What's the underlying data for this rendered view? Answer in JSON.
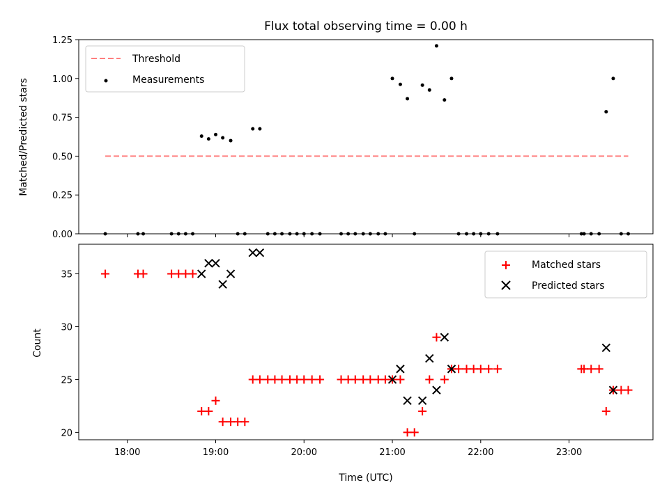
{
  "chart_data": [
    {
      "type": "scatter",
      "title": "Flux total observing time = 0.00 h",
      "xlabel": "",
      "ylabel": "Matched/Predicted stars",
      "xlim": [
        17.45,
        23.95
      ],
      "ylim": [
        0,
        1.25
      ],
      "yticks": [
        0,
        0.25,
        0.5,
        0.75,
        1.0,
        1.25
      ],
      "ytick_labels": [
        "0.00",
        "0.25",
        "0.50",
        "0.75",
        "1.00",
        "1.25"
      ],
      "legend_position": "top-left",
      "threshold": {
        "name": "Threshold",
        "value": 0.5,
        "x_range": [
          17.75,
          23.67
        ],
        "color": "#ff7f7f"
      },
      "series": [
        {
          "name": "Measurements",
          "color": "#000000",
          "marker": "dot",
          "x": [
            17.75,
            18.12,
            18.18,
            18.5,
            18.58,
            18.66,
            18.74,
            18.84,
            18.92,
            19.0,
            19.08,
            19.17,
            19.25,
            19.33,
            19.42,
            19.5,
            19.59,
            19.67,
            19.75,
            19.84,
            19.92,
            20.0,
            20.09,
            20.18,
            20.42,
            20.5,
            20.58,
            20.67,
            20.75,
            20.84,
            20.92,
            21.0,
            21.09,
            21.17,
            21.25,
            21.34,
            21.42,
            21.5,
            21.59,
            21.67,
            21.75,
            21.84,
            21.92,
            22.0,
            22.09,
            22.19,
            23.14,
            23.17,
            23.25,
            23.34,
            23.42,
            23.5,
            23.59,
            23.67
          ],
          "y": [
            0,
            0,
            0,
            0,
            0,
            0,
            0,
            0.629,
            0.611,
            0.639,
            0.618,
            0.6,
            0,
            0,
            0.676,
            0.676,
            0,
            0,
            0,
            0,
            0,
            0,
            0,
            0,
            0,
            0,
            0,
            0,
            0,
            0,
            0,
            1.0,
            0.962,
            0.87,
            0,
            0.957,
            0.926,
            1.21,
            0.862,
            1.0,
            0,
            0,
            0,
            0,
            0,
            0,
            0,
            0,
            0,
            0,
            0.786,
            1.0,
            0,
            0
          ]
        }
      ]
    },
    {
      "type": "scatter",
      "title": "",
      "xlabel": "Time (UTC)",
      "ylabel": "Count",
      "xlim": [
        17.45,
        23.95
      ],
      "ylim": [
        19.3,
        37.8
      ],
      "yticks": [
        20,
        25,
        30,
        35
      ],
      "ytick_labels": [
        "20",
        "25",
        "30",
        "35"
      ],
      "xticks": [
        18,
        19,
        20,
        21,
        22,
        23
      ],
      "xtick_labels": [
        "18:00",
        "19:00",
        "20:00",
        "21:00",
        "22:00",
        "23:00"
      ],
      "legend_position": "top-right",
      "series": [
        {
          "name": "Matched stars",
          "color": "#ff0000",
          "marker": "plus",
          "x": [
            17.75,
            18.12,
            18.18,
            18.5,
            18.58,
            18.66,
            18.74,
            18.84,
            18.92,
            19.0,
            19.08,
            19.17,
            19.25,
            19.33,
            19.42,
            19.5,
            19.59,
            19.67,
            19.75,
            19.84,
            19.92,
            20.0,
            20.09,
            20.18,
            20.42,
            20.5,
            20.58,
            20.67,
            20.75,
            20.84,
            20.92,
            21.0,
            21.09,
            21.17,
            21.25,
            21.34,
            21.42,
            21.5,
            21.59,
            21.67,
            21.75,
            21.84,
            21.92,
            22.0,
            22.09,
            22.19,
            23.14,
            23.17,
            23.25,
            23.34,
            23.42,
            23.5,
            23.59,
            23.67
          ],
          "y": [
            35,
            35,
            35,
            35,
            35,
            35,
            35,
            22,
            22,
            23,
            21,
            21,
            21,
            21,
            25,
            25,
            25,
            25,
            25,
            25,
            25,
            25,
            25,
            25,
            25,
            25,
            25,
            25,
            25,
            25,
            25,
            25,
            25,
            20,
            20,
            22,
            25,
            29,
            25,
            26,
            26,
            26,
            26,
            26,
            26,
            26,
            26,
            26,
            26,
            26,
            22,
            24,
            24,
            24
          ]
        },
        {
          "name": "Predicted stars",
          "color": "#000000",
          "marker": "x",
          "x": [
            18.84,
            18.92,
            19.0,
            19.08,
            19.17,
            19.42,
            19.5,
            21.0,
            21.09,
            21.17,
            21.34,
            21.42,
            21.5,
            21.59,
            21.67,
            23.42,
            23.5
          ],
          "y": [
            35,
            36,
            36,
            34,
            35,
            37,
            37,
            25,
            26,
            23,
            23,
            27,
            24,
            29,
            26,
            28,
            24
          ]
        }
      ]
    }
  ]
}
